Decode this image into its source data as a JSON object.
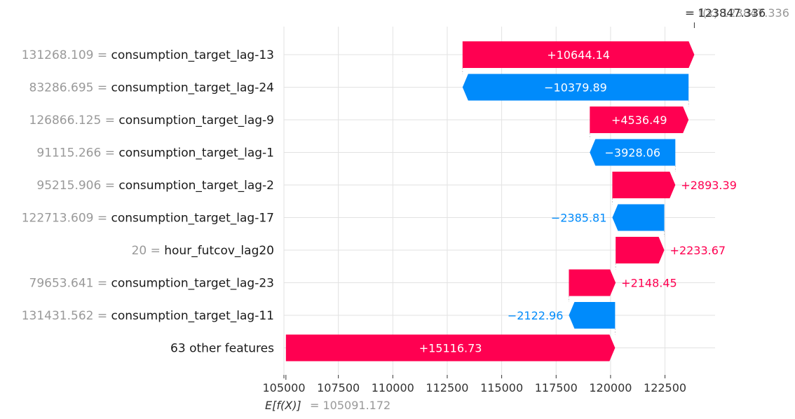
{
  "chart_data": {
    "type": "waterfall",
    "xlim": [
      105000,
      124800
    ],
    "x_ticks": [
      "105000",
      "107500",
      "110000",
      "112500",
      "115000",
      "117500",
      "120000",
      "122500"
    ],
    "base_value": 105091.172,
    "base_label": "E[f(X)]",
    "base_value_text": "= 105091.172",
    "output_value": 123847.336,
    "output_value_text_a": "= 123847.336",
    "output_value_text_b": "= f(x) 123847.336",
    "grid": true,
    "colors": {
      "positive": "#ff0051",
      "negative": "#008bfb",
      "feature_value": "#999999",
      "feature_name": "#1a1a1a"
    },
    "features": [
      {
        "value": "131268.109",
        "name": "consumption_target_lag-13",
        "contribution": 10644.14,
        "label": "+10644.14"
      },
      {
        "value": "83286.695",
        "name": "consumption_target_lag-24",
        "contribution": -10379.89,
        "label": "−10379.89"
      },
      {
        "value": "126866.125",
        "name": "consumption_target_lag-9",
        "contribution": 4536.49,
        "label": "+4536.49"
      },
      {
        "value": "91115.266",
        "name": "consumption_target_lag-1",
        "contribution": -3928.06,
        "label": "−3928.06"
      },
      {
        "value": "95215.906",
        "name": "consumption_target_lag-2",
        "contribution": 2893.39,
        "label": "+2893.39"
      },
      {
        "value": "122713.609",
        "name": "consumption_target_lag-17",
        "contribution": -2385.81,
        "label": "−2385.81"
      },
      {
        "value": "20",
        "name": "hour_futcov_lag20",
        "contribution": 2233.67,
        "label": "+2233.67"
      },
      {
        "value": "79653.641",
        "name": "consumption_target_lag-23",
        "contribution": 2148.45,
        "label": "+2148.45"
      },
      {
        "value": "131431.562",
        "name": "consumption_target_lag-11",
        "contribution": -2122.96,
        "label": "−2122.96"
      },
      {
        "value": "",
        "name": "63 other features",
        "contribution": 15116.73,
        "label": "+15116.73"
      }
    ]
  }
}
